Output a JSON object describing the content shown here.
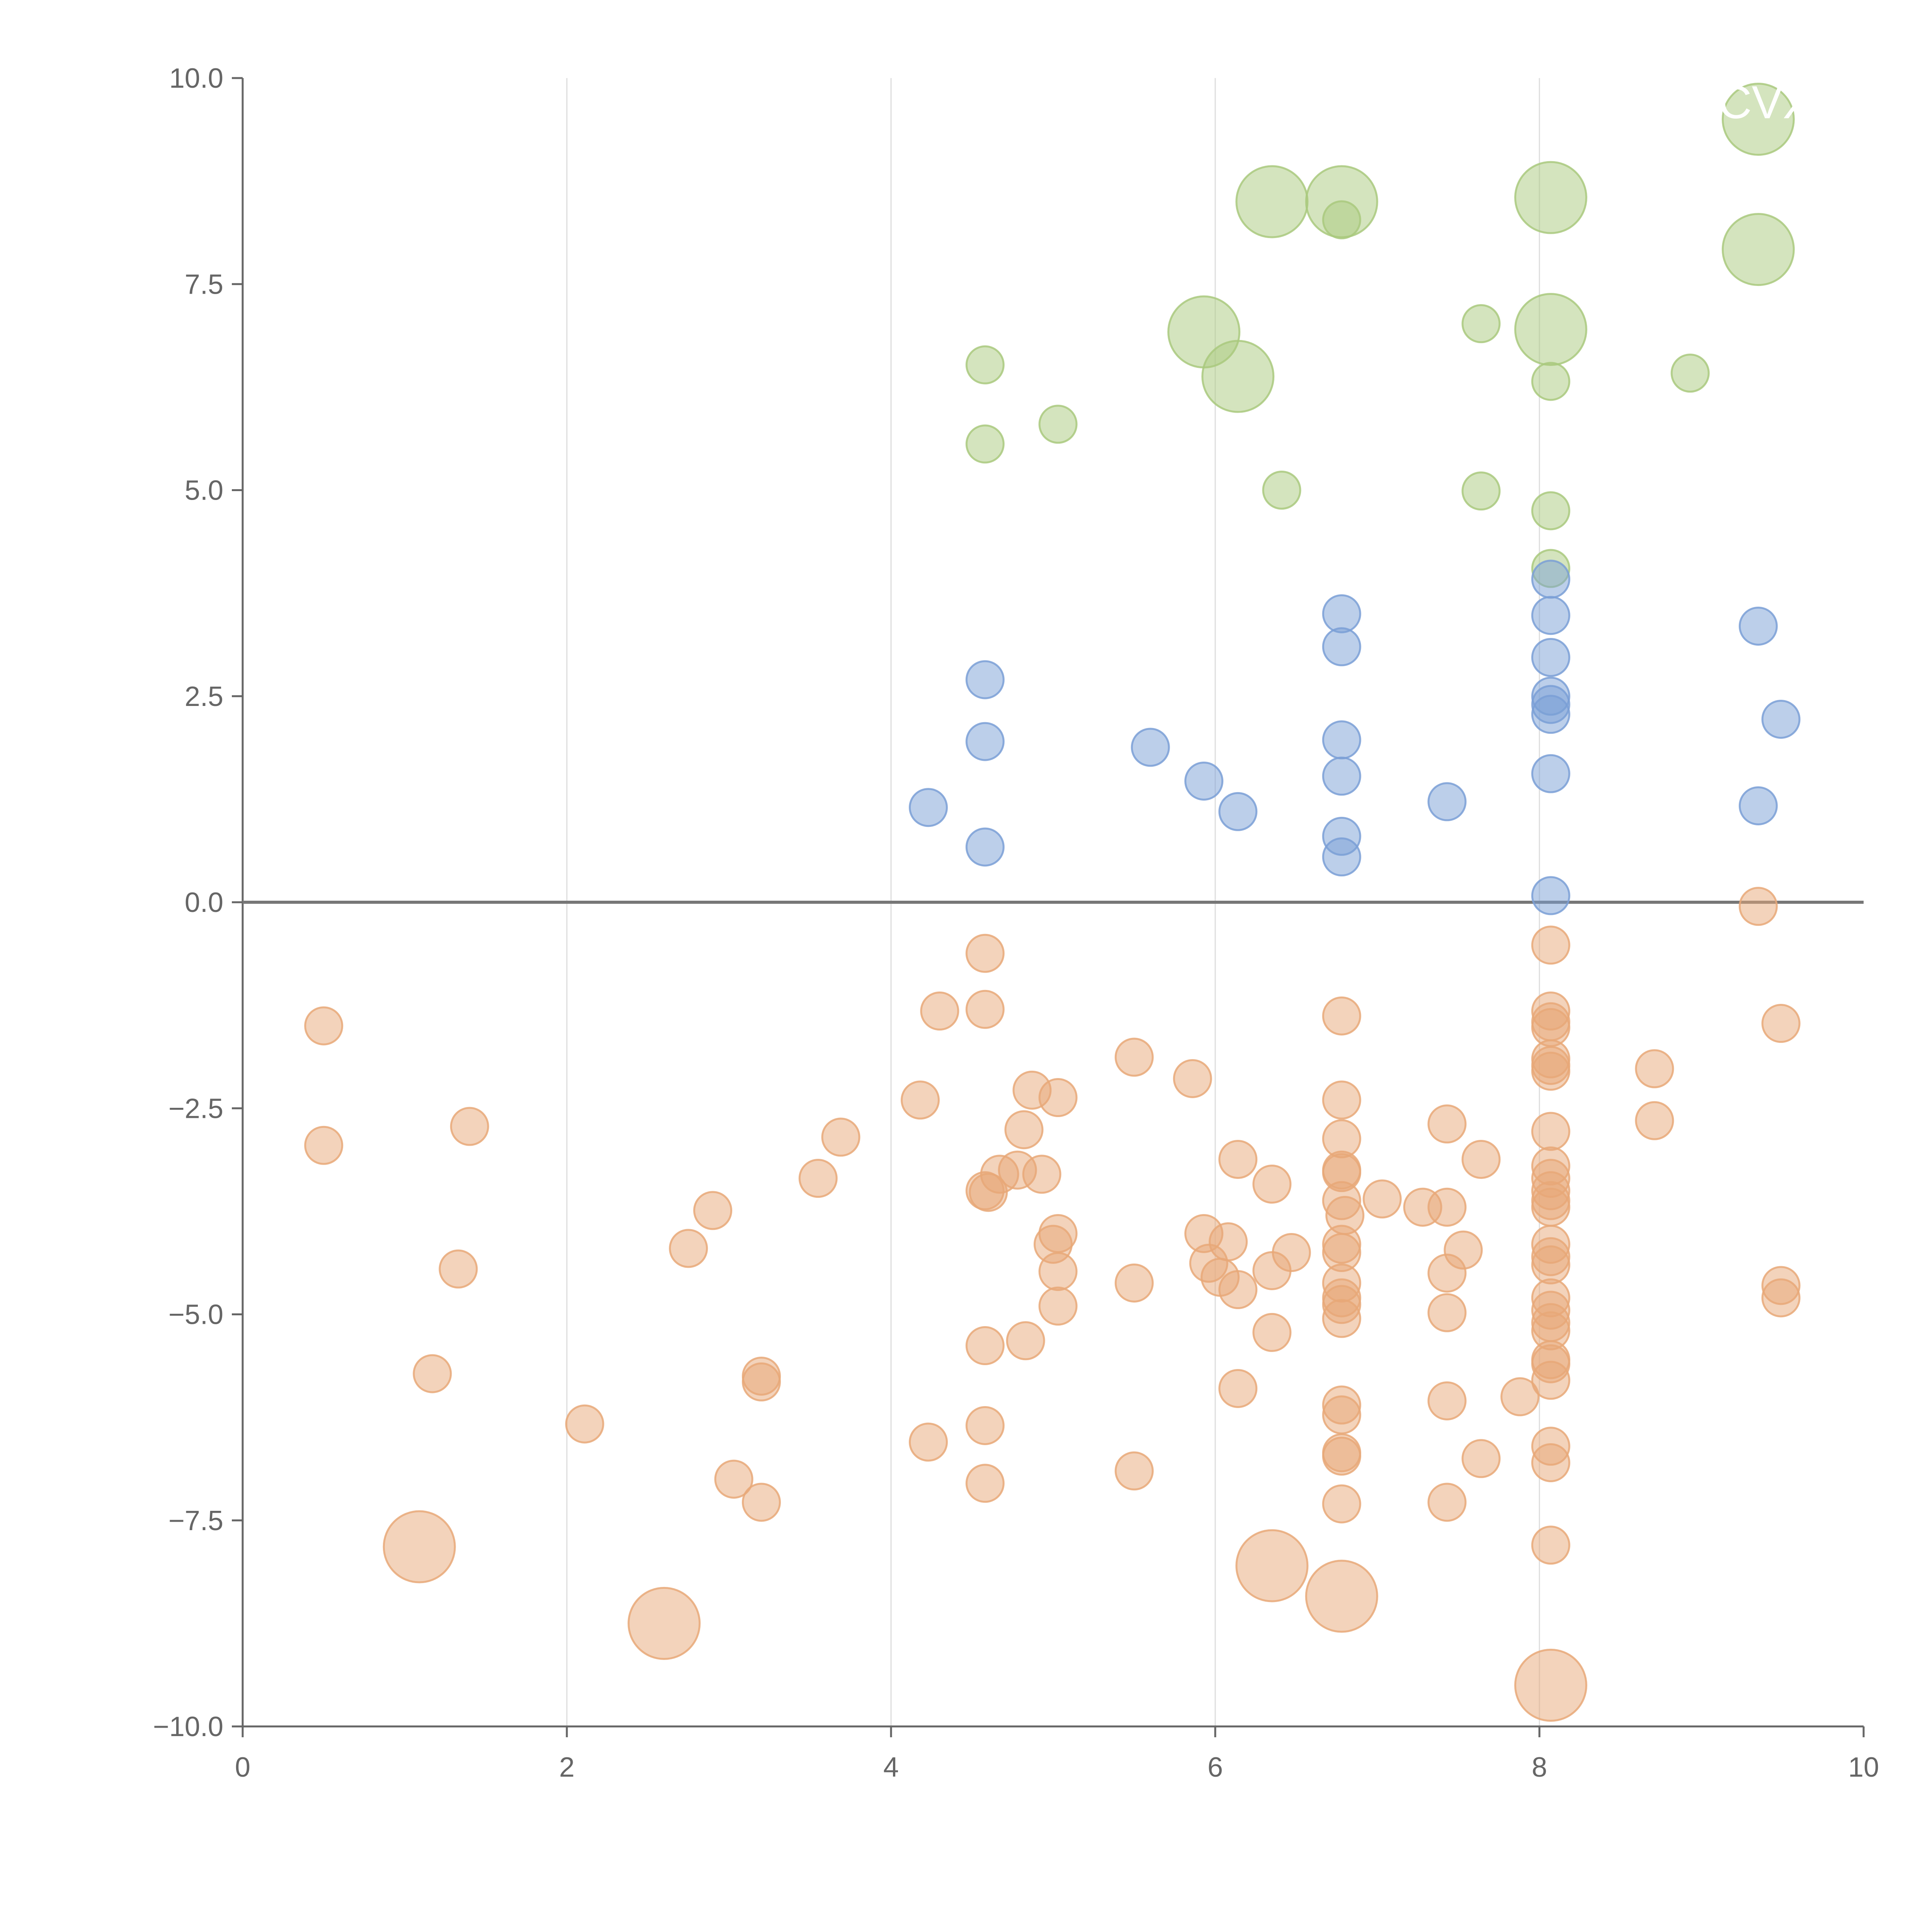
{
  "chart_data": {
    "type": "scatter",
    "title": "",
    "xlabel": "",
    "ylabel": "",
    "xlim": [
      0,
      10
    ],
    "ylim": [
      -10,
      10
    ],
    "grid": "vertical",
    "legend": "none",
    "zero_line": 0,
    "x_ticks": [
      0,
      2,
      4,
      6,
      8,
      10
    ],
    "x_tick_labels": [
      "0",
      "2",
      "4",
      "6",
      "8",
      "10"
    ],
    "y_ticks": [
      10,
      7.5,
      5,
      2.5,
      0,
      -2.5,
      -5,
      -7.5,
      -10
    ],
    "y_tick_labels": [
      "10.0",
      "7.5",
      "5.0",
      "2.5",
      "0.0",
      "−2.5",
      "−5.0",
      "−7.5",
      "−10.0"
    ],
    "annotations": [
      {
        "text": "CVX",
        "x": 9.35,
        "y": 9.7
      }
    ],
    "colors": {
      "positive": "#a9c97e",
      "neutral": "#7a9fd6",
      "negative": "#e8a878",
      "axis": "#666666",
      "grid": "#dddddd",
      "zero_line": "#777777"
    },
    "series": [
      {
        "name": "positive",
        "color_key": "positive",
        "points": [
          [
            9.35,
            9.5,
            2
          ],
          [
            6.35,
            8.5,
            2
          ],
          [
            6.78,
            8.5,
            2
          ],
          [
            8.07,
            8.55,
            2
          ],
          [
            6.78,
            8.28,
            1
          ],
          [
            9.35,
            7.92,
            2
          ],
          [
            5.93,
            6.92,
            2
          ],
          [
            8.07,
            6.95,
            2
          ],
          [
            7.64,
            7.02,
            1
          ],
          [
            6.14,
            6.38,
            2
          ],
          [
            4.58,
            6.52,
            1
          ],
          [
            8.07,
            6.32,
            1
          ],
          [
            8.93,
            6.42,
            1
          ],
          [
            5.03,
            5.8,
            1
          ],
          [
            4.58,
            5.56,
            1
          ],
          [
            6.41,
            5.0,
            1
          ],
          [
            7.64,
            4.99,
            1
          ],
          [
            8.07,
            4.75,
            1
          ],
          [
            8.07,
            4.05,
            1
          ]
        ]
      },
      {
        "name": "neutral",
        "color_key": "neutral",
        "points": [
          [
            8.07,
            3.92,
            1
          ],
          [
            6.78,
            3.5,
            1
          ],
          [
            8.07,
            3.48,
            1
          ],
          [
            9.35,
            3.35,
            1
          ],
          [
            6.78,
            3.1,
            1
          ],
          [
            8.07,
            2.97,
            1
          ],
          [
            4.58,
            2.7,
            1
          ],
          [
            8.07,
            2.5,
            1
          ],
          [
            8.07,
            2.4,
            1
          ],
          [
            8.07,
            2.28,
            1
          ],
          [
            9.49,
            2.22,
            1
          ],
          [
            6.78,
            1.97,
            1
          ],
          [
            4.58,
            1.95,
            1
          ],
          [
            5.6,
            1.88,
            1
          ],
          [
            6.78,
            1.53,
            1
          ],
          [
            8.07,
            1.56,
            1
          ],
          [
            5.93,
            1.47,
            1
          ],
          [
            7.43,
            1.22,
            1
          ],
          [
            4.23,
            1.15,
            1
          ],
          [
            9.35,
            1.17,
            1
          ],
          [
            6.14,
            1.1,
            1
          ],
          [
            6.78,
            0.8,
            1
          ],
          [
            4.58,
            0.67,
            1
          ],
          [
            6.78,
            0.55,
            1
          ],
          [
            8.07,
            0.08,
            1
          ]
        ]
      },
      {
        "name": "negative",
        "color_key": "negative",
        "points": [
          [
            9.35,
            -0.05,
            1
          ],
          [
            8.07,
            -0.52,
            1
          ],
          [
            4.58,
            -0.62,
            1
          ],
          [
            0.5,
            -1.5,
            1
          ],
          [
            4.3,
            -1.32,
            1
          ],
          [
            4.58,
            -1.3,
            1
          ],
          [
            6.78,
            -1.38,
            1
          ],
          [
            8.07,
            -1.32,
            1
          ],
          [
            8.07,
            -1.45,
            1
          ],
          [
            8.07,
            -1.52,
            1
          ],
          [
            9.49,
            -1.47,
            1
          ],
          [
            5.5,
            -1.88,
            1
          ],
          [
            8.07,
            -1.9,
            1
          ],
          [
            8.07,
            -1.98,
            1
          ],
          [
            8.07,
            -2.05,
            1
          ],
          [
            8.71,
            -2.02,
            1
          ],
          [
            5.86,
            -2.14,
            1
          ],
          [
            4.87,
            -2.28,
            1
          ],
          [
            4.18,
            -2.4,
            1
          ],
          [
            5.03,
            -2.37,
            1
          ],
          [
            6.78,
            -2.4,
            1
          ],
          [
            0.5,
            -2.95,
            1
          ],
          [
            1.4,
            -2.72,
            1
          ],
          [
            3.69,
            -2.85,
            1
          ],
          [
            4.82,
            -2.76,
            1
          ],
          [
            7.43,
            -2.69,
            1
          ],
          [
            8.07,
            -2.78,
            1
          ],
          [
            8.71,
            -2.65,
            1
          ],
          [
            6.78,
            -2.87,
            1
          ],
          [
            6.14,
            -3.12,
            1
          ],
          [
            7.64,
            -3.12,
            1
          ],
          [
            3.55,
            -3.35,
            1
          ],
          [
            4.67,
            -3.3,
            1
          ],
          [
            4.78,
            -3.25,
            1
          ],
          [
            4.93,
            -3.3,
            1
          ],
          [
            6.78,
            -3.25,
            1
          ],
          [
            6.78,
            -3.28,
            1
          ],
          [
            8.07,
            -3.2,
            1
          ],
          [
            8.07,
            -3.35,
            1
          ],
          [
            6.35,
            -3.42,
            1
          ],
          [
            4.58,
            -3.5,
            1
          ],
          [
            4.6,
            -3.52,
            1
          ],
          [
            8.07,
            -3.5,
            1
          ],
          [
            8.07,
            -3.62,
            1
          ],
          [
            8.07,
            -3.7,
            1
          ],
          [
            2.9,
            -3.74,
            1
          ],
          [
            6.78,
            -3.62,
            1
          ],
          [
            7.03,
            -3.6,
            1
          ],
          [
            7.28,
            -3.7,
            1
          ],
          [
            7.43,
            -3.7,
            1
          ],
          [
            6.8,
            -3.8,
            1
          ],
          [
            5.03,
            -4.02,
            1
          ],
          [
            5.0,
            -4.15,
            1
          ],
          [
            5.93,
            -4.02,
            1
          ],
          [
            6.08,
            -4.12,
            1
          ],
          [
            2.75,
            -4.2,
            1
          ],
          [
            6.78,
            -4.15,
            1
          ],
          [
            6.78,
            -4.25,
            1
          ],
          [
            8.07,
            -4.15,
            1
          ],
          [
            8.07,
            -4.3,
            1
          ],
          [
            8.07,
            -4.4,
            1
          ],
          [
            7.53,
            -4.22,
            1
          ],
          [
            6.47,
            -4.25,
            1
          ],
          [
            1.33,
            -4.45,
            1
          ],
          [
            5.96,
            -4.38,
            1
          ],
          [
            6.35,
            -4.47,
            1
          ],
          [
            5.03,
            -4.48,
            1
          ],
          [
            7.43,
            -4.5,
            1
          ],
          [
            6.03,
            -4.55,
            1
          ],
          [
            5.5,
            -4.62,
            1
          ],
          [
            6.14,
            -4.7,
            1
          ],
          [
            6.78,
            -4.62,
            1
          ],
          [
            6.78,
            -4.8,
            1
          ],
          [
            6.78,
            -4.88,
            1
          ],
          [
            8.07,
            -4.8,
            1
          ],
          [
            8.07,
            -4.95,
            1
          ],
          [
            9.49,
            -4.65,
            1
          ],
          [
            9.49,
            -4.8,
            1
          ],
          [
            5.03,
            -4.9,
            1
          ],
          [
            7.43,
            -4.98,
            1
          ],
          [
            6.78,
            -5.05,
            1
          ],
          [
            8.07,
            -5.1,
            1
          ],
          [
            8.07,
            -5.2,
            1
          ],
          [
            6.35,
            -5.22,
            1
          ],
          [
            4.83,
            -5.32,
            1
          ],
          [
            4.58,
            -5.38,
            1
          ],
          [
            8.07,
            -5.55,
            1
          ],
          [
            8.07,
            -5.6,
            1
          ],
          [
            1.17,
            -5.72,
            1
          ],
          [
            3.2,
            -5.75,
            1
          ],
          [
            3.2,
            -5.82,
            1
          ],
          [
            8.07,
            -5.8,
            1
          ],
          [
            6.14,
            -5.9,
            1
          ],
          [
            7.88,
            -6.0,
            1
          ],
          [
            7.43,
            -6.05,
            1
          ],
          [
            6.78,
            -6.1,
            1
          ],
          [
            6.78,
            -6.22,
            1
          ],
          [
            2.11,
            -6.33,
            1
          ],
          [
            4.58,
            -6.35,
            1
          ],
          [
            4.23,
            -6.55,
            1
          ],
          [
            8.07,
            -6.6,
            1
          ],
          [
            6.78,
            -6.68,
            1
          ],
          [
            6.78,
            -6.72,
            1
          ],
          [
            7.64,
            -6.75,
            1
          ],
          [
            8.07,
            -6.8,
            1
          ],
          [
            5.5,
            -6.9,
            1
          ],
          [
            3.03,
            -7.0,
            1
          ],
          [
            4.58,
            -7.05,
            1
          ],
          [
            3.2,
            -7.28,
            1
          ],
          [
            6.78,
            -7.3,
            1
          ],
          [
            7.43,
            -7.28,
            1
          ],
          [
            1.09,
            -7.82,
            2
          ],
          [
            8.07,
            -7.8,
            1
          ],
          [
            6.35,
            -8.05,
            2
          ],
          [
            6.78,
            -8.42,
            2
          ],
          [
            2.6,
            -8.75,
            2
          ],
          [
            8.07,
            -9.5,
            2
          ]
        ]
      }
    ]
  }
}
